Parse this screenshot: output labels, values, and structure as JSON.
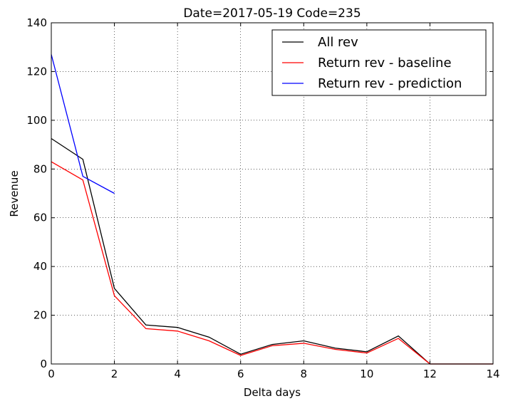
{
  "chart_data": {
    "type": "line",
    "title": "Date=2017-05-19 Code=235",
    "xlabel": "Delta days",
    "ylabel": "Revenue",
    "xlim": [
      0,
      14
    ],
    "ylim": [
      0,
      140
    ],
    "xticks": [
      0,
      2,
      4,
      6,
      8,
      10,
      12,
      14
    ],
    "yticks": [
      0,
      20,
      40,
      60,
      80,
      100,
      120,
      140
    ],
    "grid": true,
    "legend_position": "top-right",
    "series": [
      {
        "name": "All rev",
        "color": "#000000",
        "x": [
          0,
          1,
          2,
          3,
          4,
          5,
          6,
          7,
          8,
          9,
          10,
          11,
          12,
          13,
          14
        ],
        "y": [
          92.5,
          84,
          31,
          16,
          15,
          11,
          4,
          8,
          9.5,
          6.5,
          5,
          11.5,
          0,
          0,
          0
        ]
      },
      {
        "name": "Return rev - baseline",
        "color": "#ff0000",
        "x": [
          0,
          1,
          2,
          3,
          4,
          5,
          6,
          7,
          8,
          9,
          10,
          11,
          12,
          13,
          14
        ],
        "y": [
          83,
          75.5,
          28,
          14.5,
          13.5,
          9.5,
          3.5,
          7.5,
          8.5,
          6,
          4.5,
          10.5,
          0,
          0,
          0
        ]
      },
      {
        "name": "Return rev - prediction",
        "color": "#0000ff",
        "x": [
          0,
          1,
          2
        ],
        "y": [
          127,
          77,
          70
        ]
      }
    ]
  }
}
